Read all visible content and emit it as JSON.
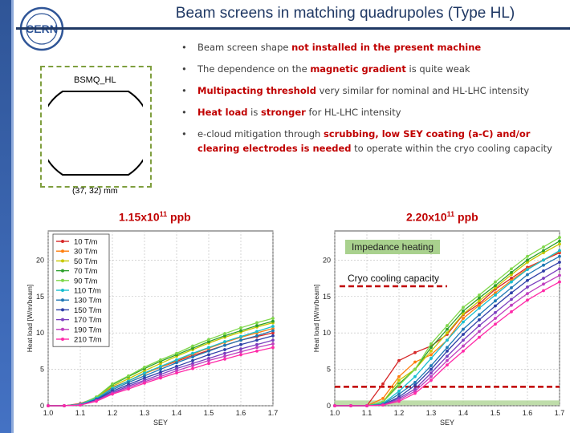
{
  "title": "Beam screens in matching quadrupoles (Type HL)",
  "logo_text": "CERN",
  "bullets": [
    [
      {
        "t": "Beam screen shape ",
        "s": "n"
      },
      {
        "t": "not installed in the present machine",
        "s": "rb"
      }
    ],
    [
      {
        "t": "The dependence on the ",
        "s": "n"
      },
      {
        "t": "magnetic gradient",
        "s": "rb"
      },
      {
        "t": " is quite weak",
        "s": "n"
      }
    ],
    [
      {
        "t": "Multipacting threshold",
        "s": "rb"
      },
      {
        "t": " very similar for nominal and HL-LHC intensity",
        "s": "n"
      }
    ],
    [
      {
        "t": "Heat load",
        "s": "rb"
      },
      {
        "t": " is ",
        "s": "n"
      },
      {
        "t": "stronger",
        "s": "rb"
      },
      {
        "t": " for HL-LHC intensity",
        "s": "n"
      }
    ],
    [
      {
        "t": "e-cloud mitigation through ",
        "s": "n"
      },
      {
        "t": "scrubbing, low SEY coating (a-C) and/or clearing electrodes is needed",
        "s": "rb"
      },
      {
        "t": " to operate within the cryo cooling capacity",
        "s": "n"
      }
    ]
  ],
  "beam_screen": {
    "label": "BSMQ_HL",
    "dimensions": "(37, 32) mm"
  },
  "left_heading": {
    "base": "1.15x10",
    "exp": "11",
    "unit": " ppb"
  },
  "right_heading": {
    "base": "2.20x10",
    "exp": "11",
    "unit": " ppb"
  },
  "colors": {
    "accent": "#c00000",
    "title": "#1f3864",
    "dashed_box": "#7f9f3f",
    "impedance": "#a9d18e",
    "cryo": "#c00000"
  },
  "chart_data": [
    {
      "type": "line",
      "xlabel": "SEY",
      "ylabel": "Heat load [W/m/beam]",
      "xlim": [
        1.0,
        1.7
      ],
      "ylim": [
        0,
        24
      ],
      "xticks": [
        "1.0",
        "1.1",
        "1.2",
        "1.3",
        "1.4",
        "1.5",
        "1.6",
        "1.7"
      ],
      "yticks": [
        "0",
        "5",
        "10",
        "15",
        "20"
      ],
      "legend_position": "top-left",
      "x": [
        1.0,
        1.05,
        1.1,
        1.15,
        1.2,
        1.25,
        1.3,
        1.35,
        1.4,
        1.45,
        1.5,
        1.55,
        1.6,
        1.65,
        1.7
      ],
      "series": [
        {
          "name": "10 T/m",
          "color": "#d62728",
          "values": [
            0,
            0,
            0.3,
            1.1,
            2.5,
            3.4,
            4.5,
            5.3,
            6.1,
            6.9,
            7.6,
            8.3,
            9.0,
            9.5,
            10.0
          ]
        },
        {
          "name": "30 T/m",
          "color": "#ff7f0e",
          "values": [
            0,
            0,
            0.2,
            1.0,
            2.4,
            3.4,
            4.4,
            5.3,
            6.2,
            7.1,
            7.9,
            8.7,
            9.4,
            10.0,
            10.6
          ]
        },
        {
          "name": "50 T/m",
          "color": "#c8c800",
          "values": [
            0,
            0,
            0.2,
            1.1,
            2.7,
            3.7,
            4.8,
            5.8,
            6.8,
            7.7,
            8.6,
            9.4,
            10.1,
            10.8,
            11.4
          ]
        },
        {
          "name": "70 T/m",
          "color": "#2ca02c",
          "values": [
            0,
            0,
            0.2,
            1.2,
            2.9,
            4.0,
            5.1,
            6.1,
            7.0,
            7.9,
            8.8,
            9.6,
            10.3,
            11.0,
            11.6
          ]
        },
        {
          "name": "90 T/m",
          "color": "#7fd84a",
          "values": [
            0,
            0,
            0.2,
            1.2,
            3.0,
            4.1,
            5.3,
            6.3,
            7.2,
            8.2,
            9.1,
            9.9,
            10.7,
            11.4,
            12.0
          ]
        },
        {
          "name": "110 T/m",
          "color": "#17becf",
          "values": [
            0,
            0,
            0.2,
            1.0,
            2.4,
            3.4,
            4.5,
            5.4,
            6.3,
            7.2,
            8.0,
            8.8,
            9.5,
            10.2,
            10.9
          ]
        },
        {
          "name": "130 T/m",
          "color": "#1f77b4",
          "values": [
            0,
            0,
            0.1,
            0.9,
            2.2,
            3.2,
            4.1,
            5.0,
            5.9,
            6.7,
            7.5,
            8.3,
            9.0,
            9.6,
            10.3
          ]
        },
        {
          "name": "150 T/m",
          "color": "#2f3fa8",
          "values": [
            0,
            0,
            0.1,
            0.8,
            2.0,
            2.9,
            3.8,
            4.6,
            5.4,
            6.2,
            7.0,
            7.7,
            8.4,
            9.0,
            9.6
          ]
        },
        {
          "name": "170 T/m",
          "color": "#7b3fbf",
          "values": [
            0,
            0,
            0.1,
            0.7,
            1.8,
            2.7,
            3.5,
            4.3,
            5.1,
            5.8,
            6.5,
            7.2,
            7.8,
            8.4,
            9.0
          ]
        },
        {
          "name": "190 T/m",
          "color": "#bf3fbf",
          "values": [
            0,
            0,
            0.1,
            0.7,
            1.7,
            2.5,
            3.3,
            4.0,
            4.8,
            5.5,
            6.2,
            6.8,
            7.4,
            8.0,
            8.5
          ]
        },
        {
          "name": "210 T/m",
          "color": "#ff2aa8",
          "values": [
            0,
            0,
            0.1,
            0.6,
            1.6,
            2.3,
            3.1,
            3.8,
            4.5,
            5.1,
            5.8,
            6.4,
            7.0,
            7.5,
            8.0
          ]
        }
      ]
    },
    {
      "type": "line",
      "xlabel": "SEY",
      "ylabel": "Heat load [W/m/beam]",
      "xlim": [
        1.0,
        1.7
      ],
      "ylim": [
        0,
        24
      ],
      "xticks": [
        "1.0",
        "1.1",
        "1.2",
        "1.3",
        "1.4",
        "1.5",
        "1.6",
        "1.7"
      ],
      "yticks": [
        "0",
        "5",
        "10",
        "15",
        "20"
      ],
      "impedance_heating": {
        "label": "Impedance heating",
        "value": 0.4
      },
      "cryo_capacity": {
        "label": "Cryo cooling capacity",
        "value": 2.6
      },
      "x": [
        1.0,
        1.05,
        1.1,
        1.15,
        1.2,
        1.25,
        1.3,
        1.35,
        1.4,
        1.45,
        1.5,
        1.55,
        1.6,
        1.65,
        1.7
      ],
      "series": [
        {
          "name": "10 T/m",
          "color": "#d62728",
          "values": [
            0,
            0,
            0,
            3.0,
            6.2,
            7.3,
            8.2,
            9.8,
            12.5,
            14.0,
            16.0,
            17.5,
            19.0,
            20.0,
            21.0
          ]
        },
        {
          "name": "30 T/m",
          "color": "#ff7f0e",
          "values": [
            0,
            0,
            0,
            1.0,
            4.0,
            6.0,
            7.0,
            9.0,
            12.0,
            13.8,
            15.5,
            17.2,
            18.8,
            20.0,
            21.2
          ]
        },
        {
          "name": "50 T/m",
          "color": "#c8c800",
          "values": [
            0,
            0,
            0,
            0.5,
            3.5,
            5.0,
            7.5,
            10.0,
            12.6,
            14.4,
            16.2,
            18.0,
            19.7,
            21.0,
            22.2
          ]
        },
        {
          "name": "70 T/m",
          "color": "#2ca02c",
          "values": [
            0,
            0,
            0,
            0.5,
            3.0,
            5.0,
            8.0,
            10.5,
            13.0,
            14.8,
            16.5,
            18.3,
            20.0,
            21.3,
            22.6
          ]
        },
        {
          "name": "90 T/m",
          "color": "#7fd84a",
          "values": [
            0,
            0,
            0,
            0.5,
            2.8,
            5.0,
            8.5,
            11.0,
            13.5,
            15.2,
            17.0,
            18.8,
            20.5,
            21.8,
            23.1
          ]
        },
        {
          "name": "110 T/m",
          "color": "#17becf",
          "values": [
            0,
            0,
            0,
            0.3,
            2.0,
            4.0,
            6.5,
            9.0,
            11.5,
            13.4,
            15.2,
            17.0,
            18.7,
            20.0,
            21.3
          ]
        },
        {
          "name": "130 T/m",
          "color": "#1f77b4",
          "values": [
            0,
            0,
            0,
            0.2,
            1.6,
            3.2,
            5.5,
            8.0,
            10.5,
            12.5,
            14.4,
            16.2,
            18.0,
            19.3,
            20.5
          ]
        },
        {
          "name": "150 T/m",
          "color": "#2f3fa8",
          "values": [
            0,
            0,
            0,
            0.1,
            1.2,
            2.8,
            5.0,
            7.5,
            9.8,
            11.8,
            13.7,
            15.5,
            17.2,
            18.5,
            19.7
          ]
        },
        {
          "name": "170 T/m",
          "color": "#7b3fbf",
          "values": [
            0,
            0,
            0,
            0.1,
            1.0,
            2.3,
            4.5,
            6.8,
            9.0,
            11.0,
            12.8,
            14.6,
            16.3,
            17.5,
            18.8
          ]
        },
        {
          "name": "190 T/m",
          "color": "#bf3fbf",
          "values": [
            0,
            0,
            0,
            0.1,
            0.8,
            2.0,
            4.0,
            6.2,
            8.2,
            10.2,
            12.0,
            13.8,
            15.4,
            16.7,
            17.9
          ]
        },
        {
          "name": "210 T/m",
          "color": "#ff2aa8",
          "values": [
            0,
            0,
            0,
            0.1,
            0.6,
            1.7,
            3.5,
            5.6,
            7.5,
            9.4,
            11.2,
            12.9,
            14.5,
            15.8,
            17.0
          ]
        }
      ]
    }
  ]
}
